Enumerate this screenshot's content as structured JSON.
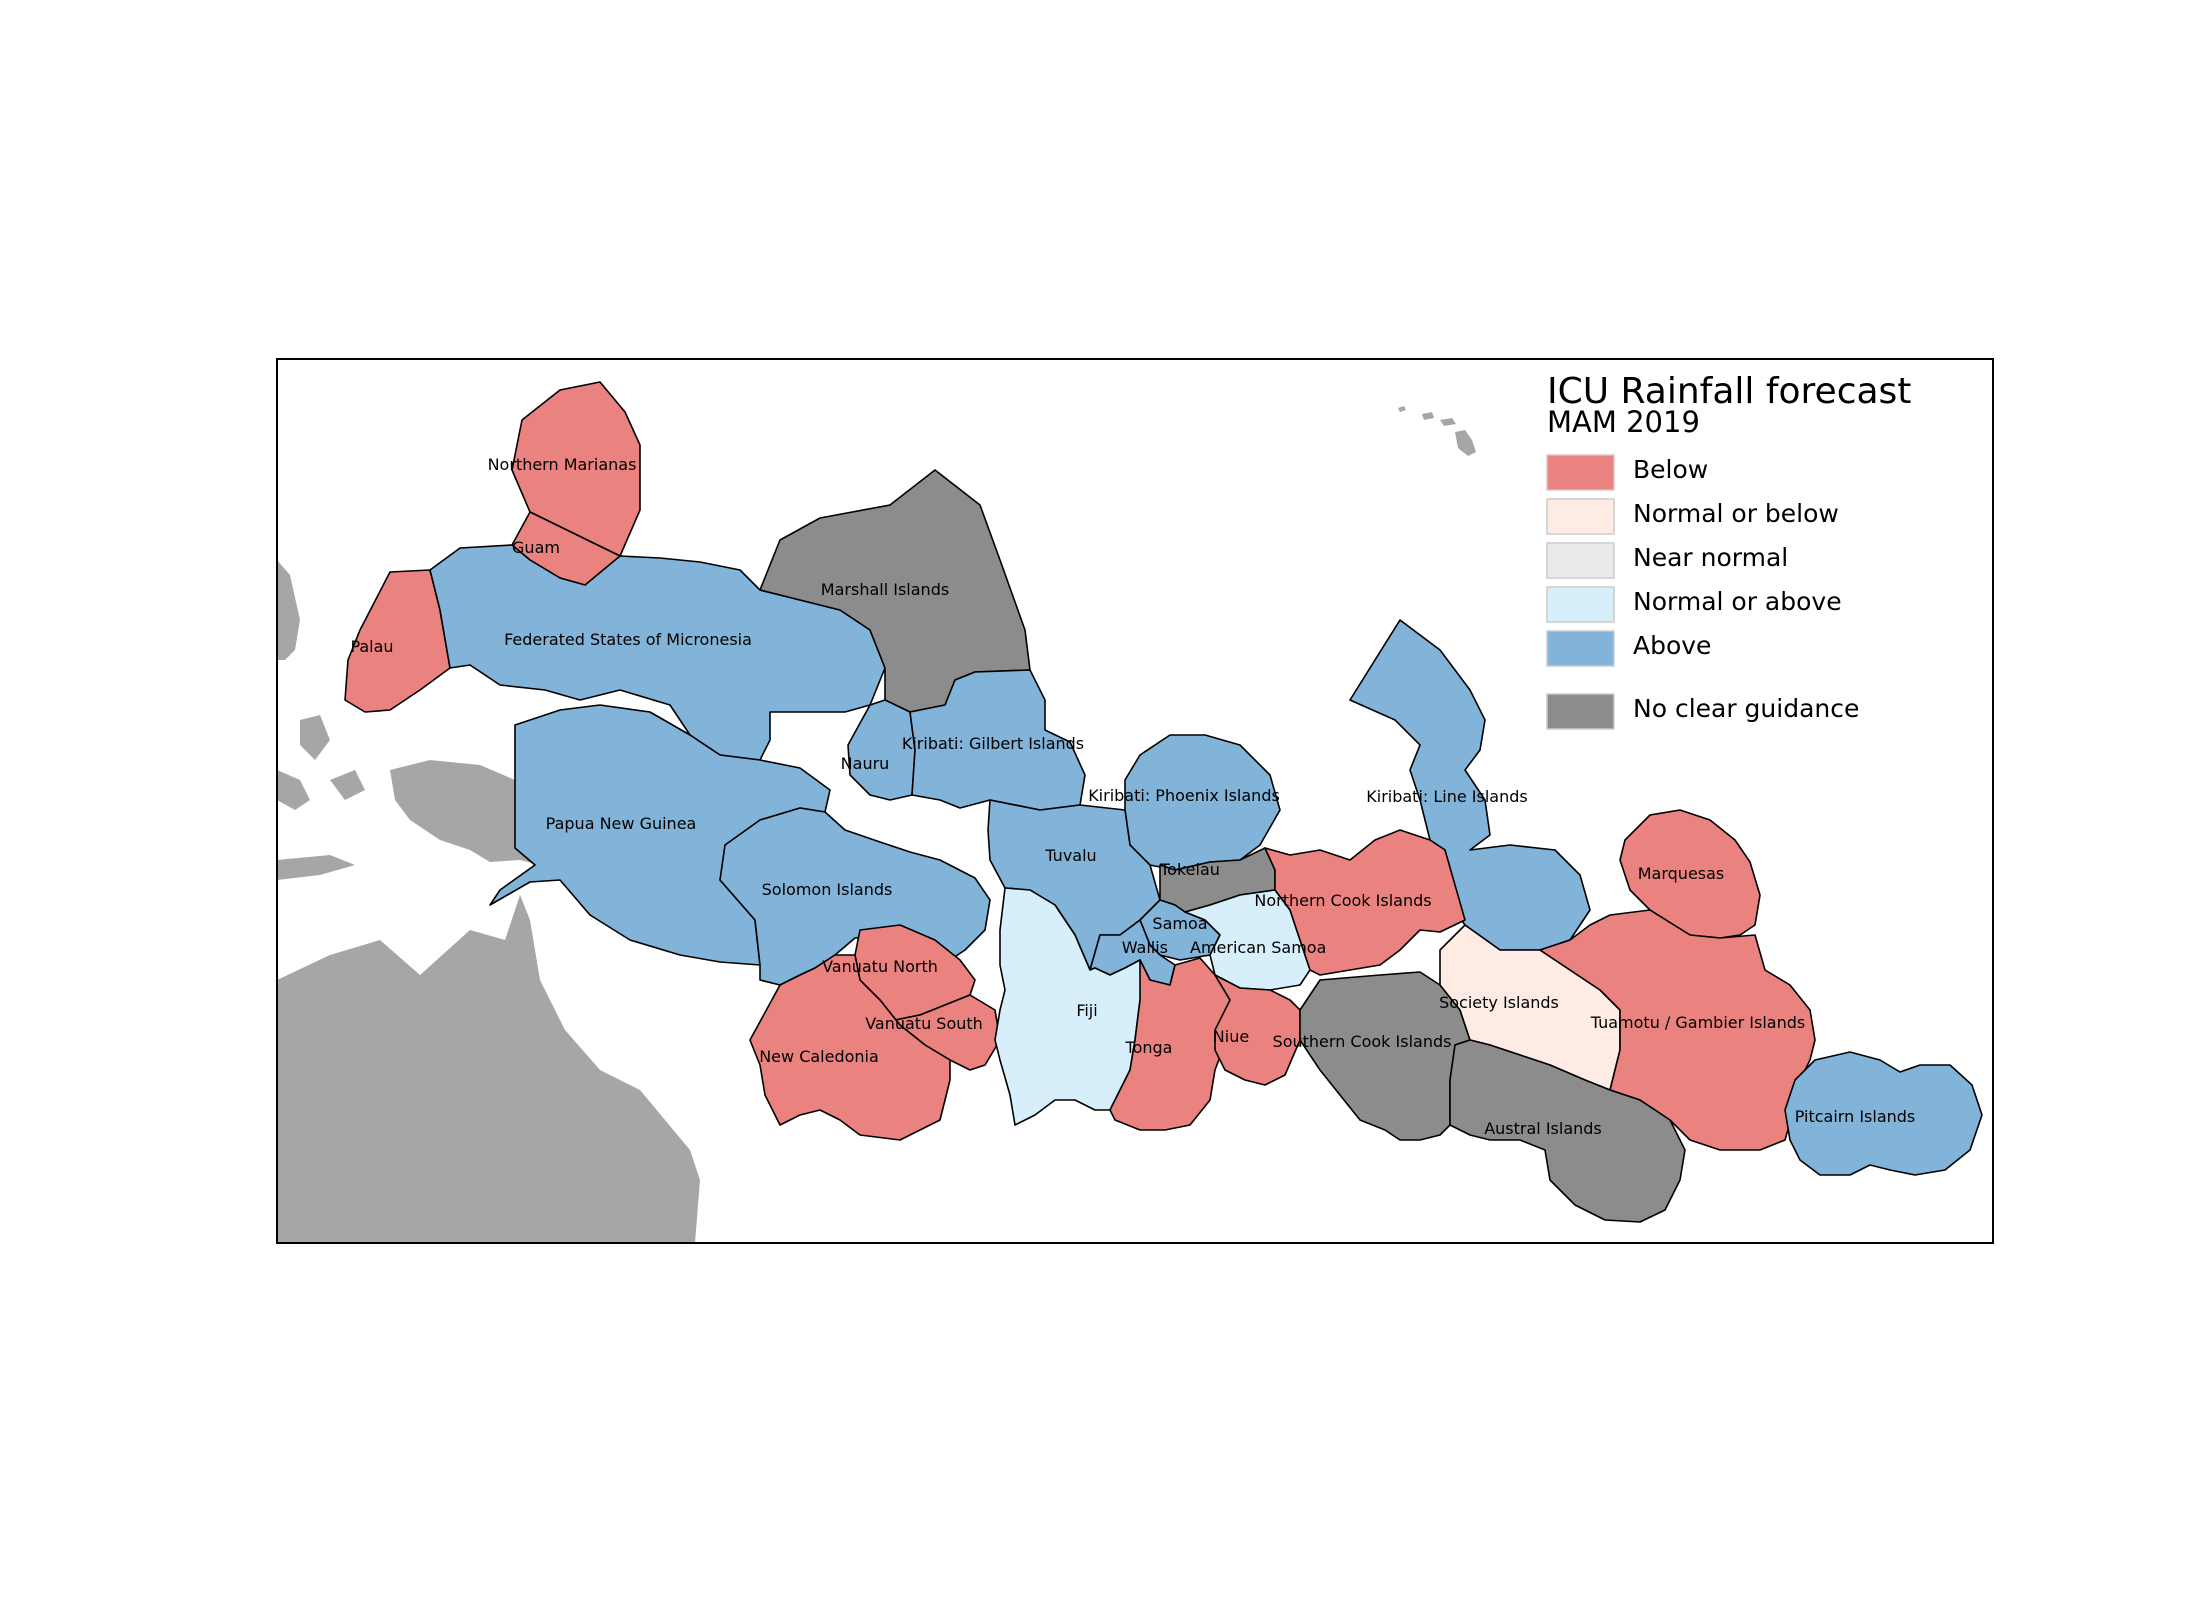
{
  "legend": {
    "title": "ICU Rainfall forecast",
    "subtitle": "MAM 2019",
    "items": [
      {
        "key": "below",
        "label": "Below",
        "color": "#ea8380"
      },
      {
        "key": "normal_or_below",
        "label": "Normal or below",
        "color": "#fdebe4"
      },
      {
        "key": "near_normal",
        "label": "Near normal",
        "color": "#ebebeb"
      },
      {
        "key": "normal_or_above",
        "label": "Normal or above",
        "color": "#d6effb"
      },
      {
        "key": "above",
        "label": "Above",
        "color": "#82b3d8"
      },
      {
        "key": "no_clear_guidance",
        "label": "No clear guidance",
        "color": "#8c8c8c"
      }
    ]
  },
  "regions": [
    {
      "id": "northern-marianas",
      "label": "Northern Marianas",
      "category": "below"
    },
    {
      "id": "guam",
      "label": "Guam",
      "category": "below"
    },
    {
      "id": "palau",
      "label": "Palau",
      "category": "below"
    },
    {
      "id": "federated-states-of-micronesia",
      "label": "Federated States of Micronesia",
      "category": "above"
    },
    {
      "id": "marshall-islands",
      "label": "Marshall Islands",
      "category": "no_clear_guidance"
    },
    {
      "id": "nauru",
      "label": "Nauru",
      "category": "above"
    },
    {
      "id": "kiribati-gilbert-islands",
      "label": "Kiribati: Gilbert Islands",
      "category": "above"
    },
    {
      "id": "kiribati-phoenix-islands",
      "label": "Kiribati: Phoenix Islands",
      "category": "above"
    },
    {
      "id": "kiribati-line-islands",
      "label": "Kiribati: Line Islands",
      "category": "above"
    },
    {
      "id": "papua-new-guinea",
      "label": "Papua New Guinea",
      "category": "above"
    },
    {
      "id": "solomon-islands",
      "label": "Solomon Islands",
      "category": "above"
    },
    {
      "id": "tuvalu",
      "label": "Tuvalu",
      "category": "above"
    },
    {
      "id": "tokelau",
      "label": "Tokelau",
      "category": "no_clear_guidance"
    },
    {
      "id": "samoa",
      "label": "Samoa",
      "category": "above"
    },
    {
      "id": "wallis",
      "label": "Wallis",
      "category": "above"
    },
    {
      "id": "american-samoa",
      "label": "American Samoa",
      "category": "normal_or_above"
    },
    {
      "id": "northern-cook-islands",
      "label": "Northern Cook Islands",
      "category": "below"
    },
    {
      "id": "marquesas",
      "label": "Marquesas",
      "category": "below"
    },
    {
      "id": "vanuatu-north",
      "label": "Vanuatu North",
      "category": "below"
    },
    {
      "id": "vanuatu-south",
      "label": "Vanuatu South",
      "category": "below"
    },
    {
      "id": "new-caledonia",
      "label": "New Caledonia",
      "category": "below"
    },
    {
      "id": "fiji",
      "label": "Fiji",
      "category": "normal_or_above"
    },
    {
      "id": "tonga",
      "label": "Tonga",
      "category": "below"
    },
    {
      "id": "niue",
      "label": "Niue",
      "category": "below"
    },
    {
      "id": "southern-cook-islands",
      "label": "Southern Cook Islands",
      "category": "no_clear_guidance"
    },
    {
      "id": "society-islands",
      "label": "Society Islands",
      "category": "normal_or_below"
    },
    {
      "id": "tuamotu-gambier-islands",
      "label": "Tuamotu / Gambier Islands",
      "category": "below"
    },
    {
      "id": "austral-islands",
      "label": "Austral Islands",
      "category": "no_clear_guidance"
    },
    {
      "id": "pitcairn-islands",
      "label": "Pitcairn Islands",
      "category": "above"
    }
  ]
}
